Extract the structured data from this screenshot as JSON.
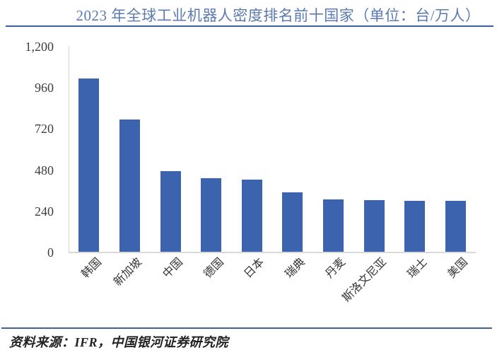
{
  "figure": {
    "title": "2023 年全球工业机器人密度排名前十国家（单位：台/万人）",
    "source_note": "资料来源：IFR，中国银河证券研究院"
  },
  "colors": {
    "bar": "#3C64AE",
    "title_text": "#5B7AB2",
    "rule": "#3E5FA4",
    "axis_line": "#D9D9D9",
    "tick_text": "#3D3D3D"
  },
  "chart_data": {
    "type": "bar",
    "title": "2023 年全球工业机器人密度排名前十国家（单位：台/万人）",
    "categories": [
      "韩国",
      "新加坡",
      "中国",
      "德国",
      "日本",
      "瑞典",
      "丹麦",
      "斯洛文尼亚",
      "瑞士",
      "美国"
    ],
    "values": [
      1012,
      770,
      470,
      429,
      419,
      347,
      306,
      302,
      298,
      295
    ],
    "xlabel": "",
    "ylabel": "",
    "unit": "台/万人",
    "ylim": [
      0,
      1200
    ],
    "yticks": [
      0,
      240,
      480,
      720,
      960,
      1200
    ],
    "ytick_labels": [
      "0",
      "240",
      "480",
      "720",
      "960",
      "1,200"
    ],
    "grid": false,
    "legend": null,
    "bar_color": "#3C64AE"
  }
}
